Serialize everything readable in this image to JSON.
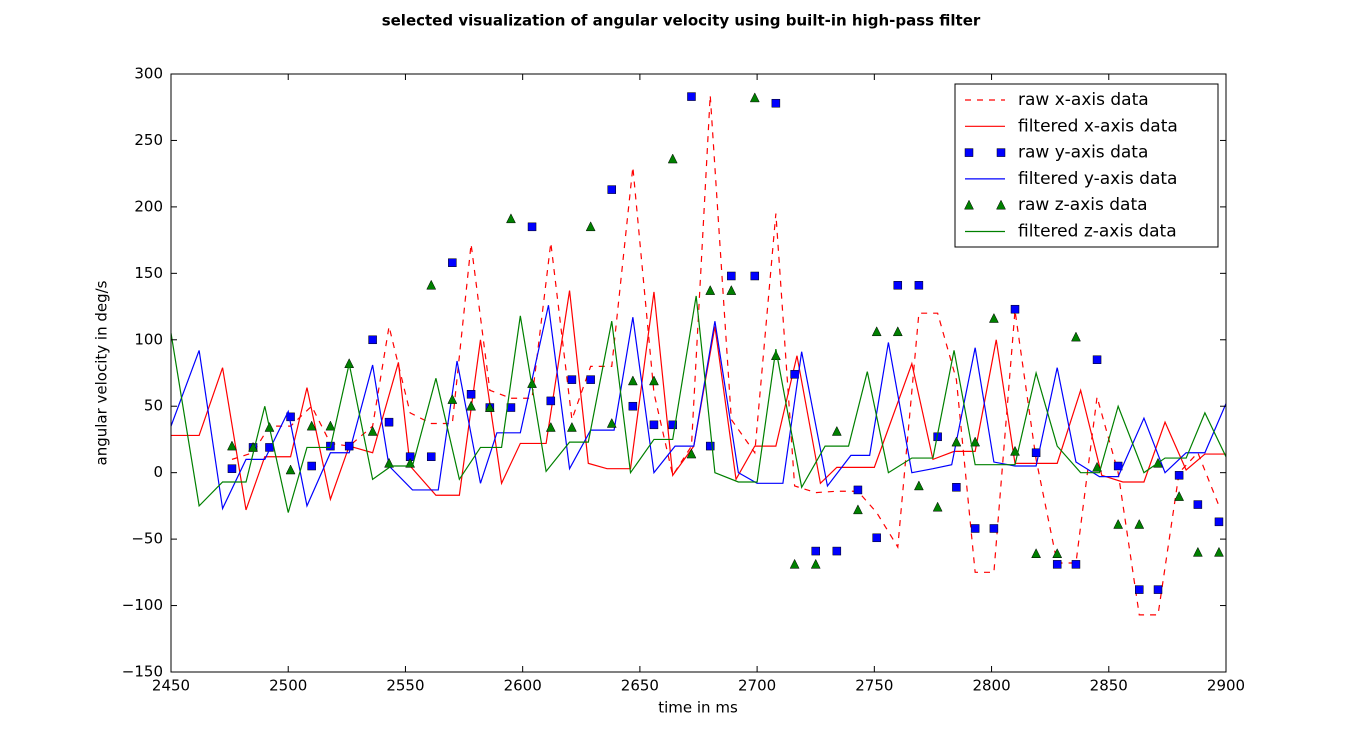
{
  "chart_data": {
    "type": "line",
    "title": "selected visualization of angular velocity using built-in high-pass filter",
    "x_label": "time in ms",
    "y_label": "angular velocity in deg/s",
    "xlim": [
      2450,
      2900
    ],
    "ylim": [
      -150,
      300
    ],
    "xticks": [
      2450,
      2500,
      2550,
      2600,
      2650,
      2700,
      2750,
      2800,
      2850,
      2900
    ],
    "yticks": [
      {
        "value": -150,
        "label": "−150"
      },
      {
        "value": -100,
        "label": "−100"
      },
      {
        "value": -50,
        "label": "−50"
      },
      0,
      50,
      100,
      150,
      200,
      250,
      300
    ],
    "legend": "upper right",
    "series": [
      {
        "name": "raw x-axis data",
        "color": "#ff0000",
        "linestyle": "dashed",
        "marker": "none",
        "x": [
          2476,
          2485,
          2492,
          2501,
          2510,
          2518,
          2526,
          2536,
          2543,
          2552,
          2561,
          2570,
          2578,
          2586,
          2595,
          2604,
          2612,
          2621,
          2629,
          2638,
          2647,
          2656,
          2664,
          2672,
          2680,
          2689,
          2699,
          2708,
          2716,
          2725,
          2734,
          2743,
          2751,
          2760,
          2769,
          2777,
          2785,
          2793,
          2801,
          2810,
          2819,
          2828,
          2836,
          2845,
          2854,
          2863,
          2871,
          2880,
          2888,
          2897
        ],
        "values": [
          10,
          15,
          35,
          35,
          50,
          22,
          20,
          35,
          110,
          45,
          37,
          37,
          172,
          62,
          56,
          56,
          173,
          40,
          80,
          80,
          230,
          60,
          -2,
          20,
          284,
          40,
          15,
          195,
          -10,
          -15,
          -14,
          -14,
          -30,
          -56,
          120,
          120,
          70,
          -75,
          -75,
          122,
          10,
          -68,
          -68,
          57,
          0,
          -107,
          -107,
          0,
          15,
          -25
        ]
      },
      {
        "name": "filtered x-axis data",
        "color": "#ff0000",
        "linestyle": "solid",
        "marker": "none",
        "x": [
          2450,
          2462,
          2472,
          2482,
          2490,
          2501,
          2508,
          2518,
          2526,
          2536,
          2547,
          2552,
          2563,
          2573,
          2582,
          2591,
          2599,
          2610,
          2620,
          2628,
          2636,
          2646,
          2656,
          2664,
          2673,
          2682,
          2691,
          2699,
          2708,
          2717,
          2727,
          2734,
          2743,
          2750,
          2766,
          2775,
          2784,
          2793,
          2802,
          2810,
          2819,
          2828,
          2838,
          2847,
          2856,
          2865,
          2874,
          2883,
          2891,
          2900
        ],
        "values": [
          28,
          28,
          79,
          -28,
          12,
          12,
          64,
          -20,
          20,
          15,
          83,
          5,
          -17,
          -17,
          100,
          -8,
          22,
          22,
          137,
          7,
          3,
          3,
          136,
          -2,
          20,
          110,
          -5,
          20,
          20,
          88,
          -8,
          4,
          4,
          4,
          82,
          10,
          16,
          16,
          100,
          7,
          7,
          7,
          62,
          -2,
          -7,
          -7,
          38,
          2,
          14,
          14
        ]
      },
      {
        "name": "raw y-axis data",
        "color": "#0000ff",
        "linestyle": "none",
        "marker": "square",
        "x": [
          2476,
          2485,
          2492,
          2501,
          2510,
          2518,
          2526,
          2536,
          2543,
          2552,
          2561,
          2570,
          2578,
          2586,
          2595,
          2604,
          2612,
          2621,
          2629,
          2638,
          2647,
          2656,
          2664,
          2672,
          2680,
          2689,
          2699,
          2708,
          2716,
          2725,
          2734,
          2743,
          2751,
          2760,
          2769,
          2777,
          2785,
          2793,
          2801,
          2810,
          2819,
          2828,
          2836,
          2845,
          2854,
          2863,
          2871,
          2880,
          2888,
          2897
        ],
        "values": [
          3,
          19,
          19,
          42,
          5,
          20,
          20,
          100,
          38,
          12,
          12,
          158,
          59,
          49,
          49,
          185,
          54,
          70,
          70,
          213,
          50,
          36,
          36,
          283,
          20,
          148,
          148,
          278,
          74,
          -59,
          -59,
          -13,
          -49,
          141,
          141,
          27,
          -11,
          -42,
          -42,
          123,
          15,
          -69,
          -69,
          85,
          5,
          -88,
          -88,
          -2,
          -24,
          -37
        ]
      },
      {
        "name": "filtered y-axis data",
        "color": "#0000ff",
        "linestyle": "solid",
        "marker": "none",
        "x": [
          2450,
          2462,
          2472,
          2482,
          2490,
          2500,
          2508,
          2518,
          2526,
          2536,
          2543,
          2553,
          2564,
          2572,
          2582,
          2589,
          2599,
          2611,
          2620,
          2629,
          2639,
          2647,
          2656,
          2665,
          2673,
          2682,
          2692,
          2700,
          2711,
          2719,
          2730,
          2740,
          2748,
          2756,
          2766,
          2775,
          2783,
          2793,
          2801,
          2810,
          2819,
          2828,
          2836,
          2846,
          2854,
          2865,
          2874,
          2883,
          2891,
          2900
        ],
        "values": [
          35,
          92,
          -27,
          10,
          10,
          46,
          -25,
          15,
          15,
          81,
          5,
          -13,
          -13,
          84,
          -8,
          30,
          30,
          126,
          3,
          32,
          32,
          117,
          0,
          20,
          20,
          114,
          0,
          -8,
          -8,
          91,
          -10,
          13,
          13,
          98,
          0,
          3,
          6,
          94,
          8,
          5,
          5,
          79,
          8,
          -3,
          -3,
          41,
          0,
          15,
          15,
          52
        ]
      },
      {
        "name": "raw z-axis data",
        "color": "#008000",
        "linestyle": "none",
        "marker": "triangle",
        "x": [
          2476,
          2485,
          2492,
          2501,
          2510,
          2518,
          2526,
          2536,
          2543,
          2552,
          2561,
          2570,
          2578,
          2586,
          2595,
          2604,
          2612,
          2621,
          2629,
          2638,
          2647,
          2656,
          2664,
          2672,
          2680,
          2689,
          2699,
          2708,
          2716,
          2725,
          2734,
          2743,
          2751,
          2760,
          2769,
          2777,
          2785,
          2793,
          2801,
          2810,
          2819,
          2828,
          2836,
          2845,
          2854,
          2863,
          2871,
          2880,
          2888,
          2897
        ],
        "values": [
          20,
          19,
          34,
          2,
          35,
          35,
          82,
          31,
          7,
          7,
          141,
          55,
          50,
          49,
          191,
          67,
          34,
          34,
          185,
          37,
          69,
          69,
          236,
          14,
          137,
          137,
          282,
          88,
          -69,
          -69,
          31,
          -28,
          106,
          106,
          -10,
          -26,
          23,
          23,
          116,
          16,
          -61,
          -61,
          102,
          4,
          -39,
          -39,
          7,
          -18,
          -60,
          -60
        ]
      },
      {
        "name": "filtered z-axis data",
        "color": "#008000",
        "linestyle": "solid",
        "marker": "none",
        "x": [
          2450,
          2462,
          2472,
          2482,
          2490,
          2500,
          2508,
          2518,
          2526,
          2536,
          2544,
          2553,
          2563,
          2573,
          2582,
          2591,
          2599,
          2610,
          2620,
          2628,
          2638,
          2646,
          2656,
          2664,
          2674,
          2682,
          2692,
          2700,
          2708,
          2719,
          2729,
          2739,
          2747,
          2756,
          2766,
          2775,
          2784,
          2793,
          2801,
          2810,
          2819,
          2828,
          2838,
          2846,
          2854,
          2865,
          2874,
          2883,
          2891,
          2900
        ],
        "values": [
          105,
          -25,
          -7,
          -7,
          50,
          -30,
          19,
          19,
          82,
          -5,
          5,
          5,
          71,
          -5,
          19,
          19,
          118,
          1,
          23,
          23,
          114,
          0,
          25,
          25,
          133,
          0,
          -7,
          -7,
          93,
          -11,
          20,
          20,
          76,
          0,
          11,
          11,
          92,
          6,
          6,
          6,
          75,
          20,
          0,
          0,
          50,
          0,
          11,
          11,
          45,
          12
        ]
      }
    ]
  }
}
